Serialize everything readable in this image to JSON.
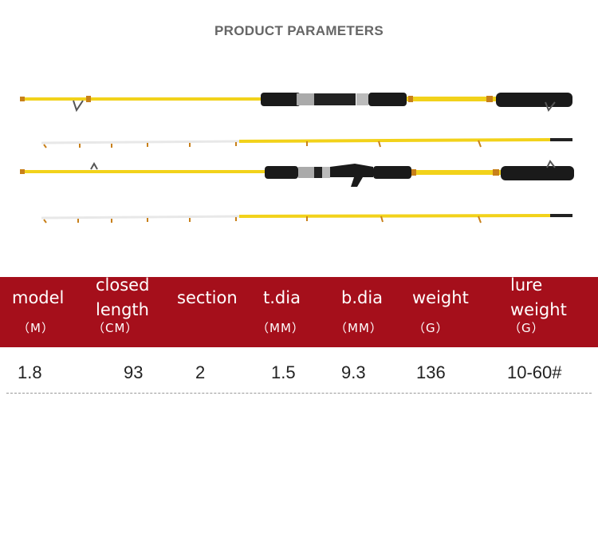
{
  "header": {
    "title": "PRODUCT PARAMETERS"
  },
  "table": {
    "columns": [
      {
        "name": "model",
        "unit": "（M）"
      },
      {
        "name": "closed length",
        "unit": "（CM）"
      },
      {
        "name": "section"
      },
      {
        "name": "t.dia",
        "unit": "（MM）"
      },
      {
        "name": "b.dia",
        "unit": "（MM）"
      },
      {
        "name": "weight",
        "unit": "（G）"
      },
      {
        "name": "lure weight",
        "unit": "（G）"
      }
    ],
    "rows": [
      [
        "1.8",
        "93",
        "2",
        "1.5",
        "9.3",
        "136",
        "10-60#"
      ]
    ]
  }
}
